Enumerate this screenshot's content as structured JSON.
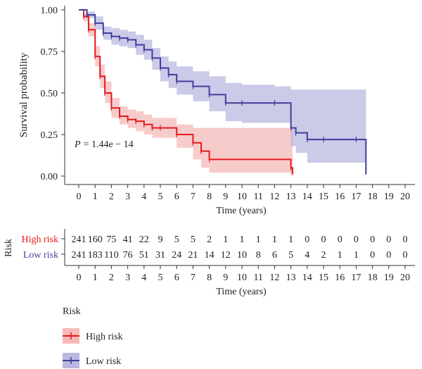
{
  "chart_data": {
    "type": "line",
    "subtype": "kaplan-meier",
    "title": "",
    "xlabel": "Time (years)",
    "ylabel": "Survival probability",
    "xlim": [
      0,
      20
    ],
    "ylim": [
      0,
      1
    ],
    "x_ticks": [
      "0",
      "1",
      "2",
      "3",
      "4",
      "5",
      "6",
      "7",
      "8",
      "9",
      "10",
      "11",
      "12",
      "13",
      "14",
      "15",
      "16",
      "17",
      "18",
      "19",
      "20"
    ],
    "y_ticks": [
      "0.00",
      "0.25",
      "0.50",
      "0.75",
      "1.00"
    ],
    "annotation": {
      "p_label": "P",
      "p_value": "= 1.44e − 14"
    },
    "series": [
      {
        "name": "High risk",
        "color": "#e41a1c",
        "band_color": "#f4a9a8",
        "x": [
          0,
          0.3,
          0.6,
          1.0,
          1.3,
          1.6,
          2.0,
          2.5,
          3.0,
          3.5,
          4.0,
          4.5,
          5.0,
          6.0,
          7.0,
          7.5,
          8.0,
          13.0,
          13.1
        ],
        "y": [
          1.0,
          0.96,
          0.88,
          0.72,
          0.6,
          0.5,
          0.41,
          0.36,
          0.34,
          0.33,
          0.31,
          0.29,
          0.29,
          0.25,
          0.2,
          0.15,
          0.1,
          0.05,
          0.01
        ],
        "upper": [
          1.0,
          0.98,
          0.92,
          0.78,
          0.67,
          0.57,
          0.47,
          0.42,
          0.4,
          0.39,
          0.37,
          0.35,
          0.35,
          0.31,
          0.29,
          0.29,
          0.29,
          0.29,
          0.29
        ],
        "lower": [
          1.0,
          0.93,
          0.84,
          0.66,
          0.53,
          0.44,
          0.35,
          0.31,
          0.29,
          0.27,
          0.25,
          0.23,
          0.23,
          0.17,
          0.1,
          0.05,
          0.02,
          0.0,
          0.0
        ]
      },
      {
        "name": "Low risk",
        "color": "#3f3f9d",
        "band_color": "#a9a6d8",
        "x": [
          0,
          0.5,
          1.0,
          1.5,
          2.0,
          2.5,
          3.0,
          3.5,
          4.0,
          4.5,
          5.0,
          5.5,
          6.0,
          7.0,
          8.0,
          9.0,
          10.0,
          12.0,
          13.0,
          13.3,
          14.0,
          15.0,
          17.0,
          17.6
        ],
        "y": [
          1.0,
          0.97,
          0.92,
          0.86,
          0.84,
          0.83,
          0.82,
          0.79,
          0.76,
          0.71,
          0.65,
          0.61,
          0.57,
          0.54,
          0.49,
          0.44,
          0.44,
          0.44,
          0.29,
          0.26,
          0.22,
          0.22,
          0.22,
          0.01
        ],
        "upper": [
          1.0,
          0.99,
          0.96,
          0.9,
          0.89,
          0.88,
          0.87,
          0.85,
          0.82,
          0.77,
          0.72,
          0.69,
          0.66,
          0.63,
          0.6,
          0.56,
          0.55,
          0.54,
          0.52,
          0.52,
          0.52,
          0.52,
          0.52,
          0.52
        ],
        "lower": [
          1.0,
          0.95,
          0.88,
          0.82,
          0.79,
          0.78,
          0.77,
          0.73,
          0.7,
          0.64,
          0.57,
          0.53,
          0.49,
          0.45,
          0.39,
          0.33,
          0.32,
          0.32,
          0.18,
          0.14,
          0.08,
          0.08,
          0.08,
          0.0
        ]
      }
    ],
    "risk_table": {
      "title": "Risk",
      "xlabel": "Time (years)",
      "x": [
        "0",
        "1",
        "2",
        "3",
        "4",
        "5",
        "6",
        "7",
        "8",
        "9",
        "10",
        "11",
        "12",
        "13",
        "14",
        "15",
        "16",
        "17",
        "18",
        "19",
        "20"
      ],
      "rows": [
        {
          "name": "High risk",
          "color": "#e41a1c",
          "values": [
            "241",
            "160",
            "75",
            "41",
            "22",
            "9",
            "5",
            "5",
            "2",
            "1",
            "1",
            "1",
            "1",
            "1",
            "0",
            "0",
            "0",
            "0",
            "0",
            "0",
            "0"
          ]
        },
        {
          "name": "Low risk",
          "color": "#3f3f9d",
          "values": [
            "241",
            "183",
            "110",
            "76",
            "51",
            "31",
            "24",
            "21",
            "14",
            "12",
            "10",
            "8",
            "6",
            "5",
            "4",
            "2",
            "1",
            "1",
            "0",
            "0",
            "0"
          ]
        }
      ]
    },
    "legend": {
      "title": "Risk",
      "position": "bottom-left",
      "items": [
        {
          "label": "High risk",
          "color": "#e41a1c",
          "band_color": "#f4a9a8"
        },
        {
          "label": "Low risk",
          "color": "#3f3f9d",
          "band_color": "#a9a6d8"
        }
      ]
    }
  }
}
